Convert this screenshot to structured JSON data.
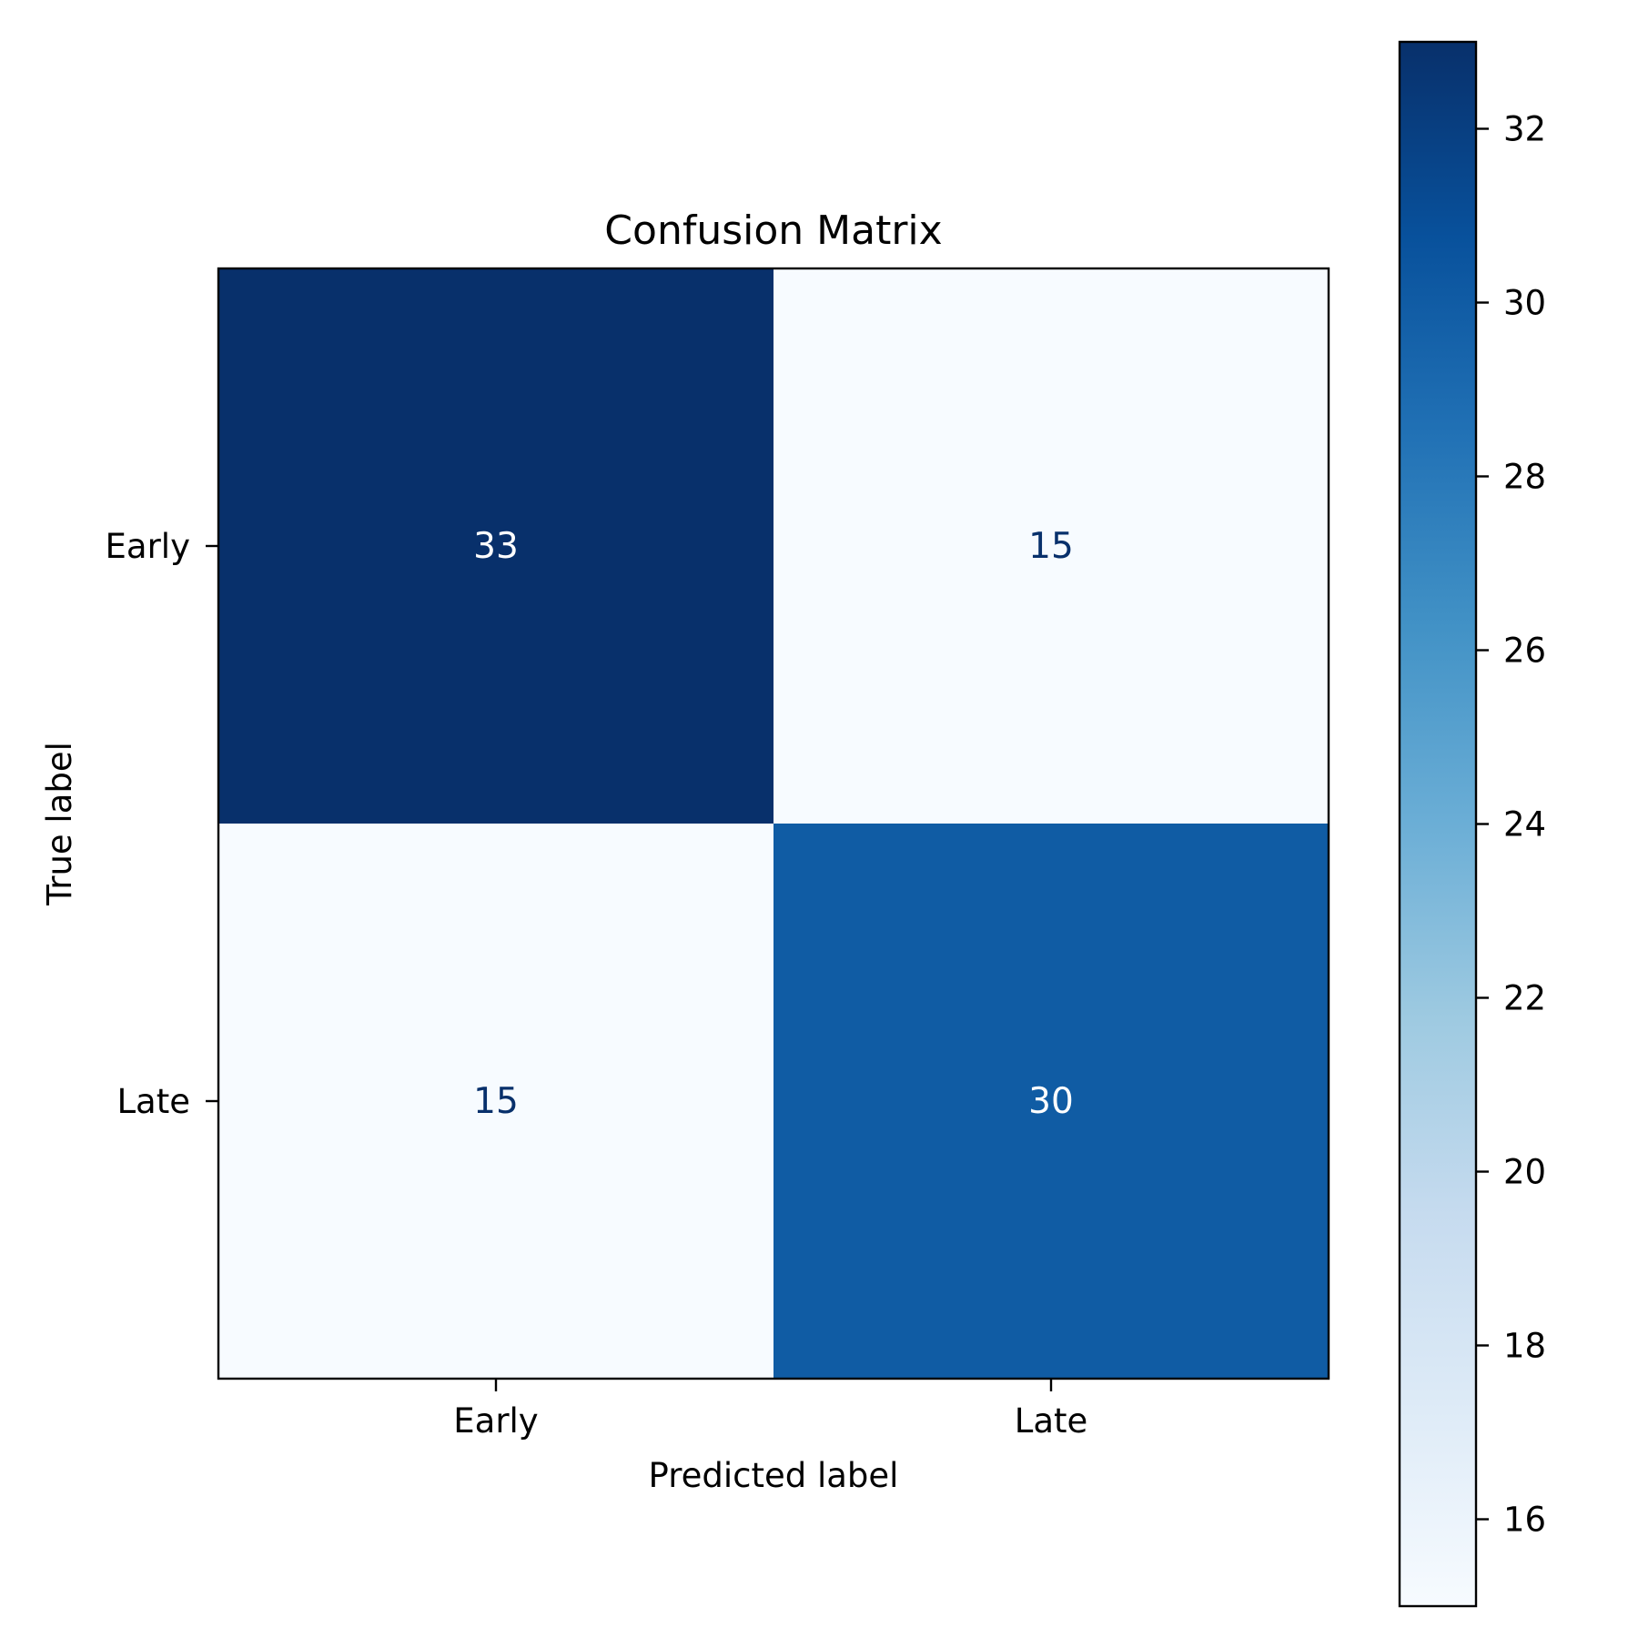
{
  "chart_data": {
    "type": "heatmap",
    "title": "Confusion Matrix",
    "xlabel": "Predicted label",
    "ylabel": "True label",
    "x_categories": [
      "Early",
      "Late"
    ],
    "y_categories": [
      "Early",
      "Late"
    ],
    "values": [
      [
        33,
        15
      ],
      [
        15,
        30
      ]
    ],
    "colormap": "Blues",
    "colorbar": {
      "range": [
        15,
        33
      ],
      "ticks": [
        16,
        18,
        20,
        22,
        24,
        26,
        28,
        30,
        32
      ]
    },
    "grid": false
  }
}
